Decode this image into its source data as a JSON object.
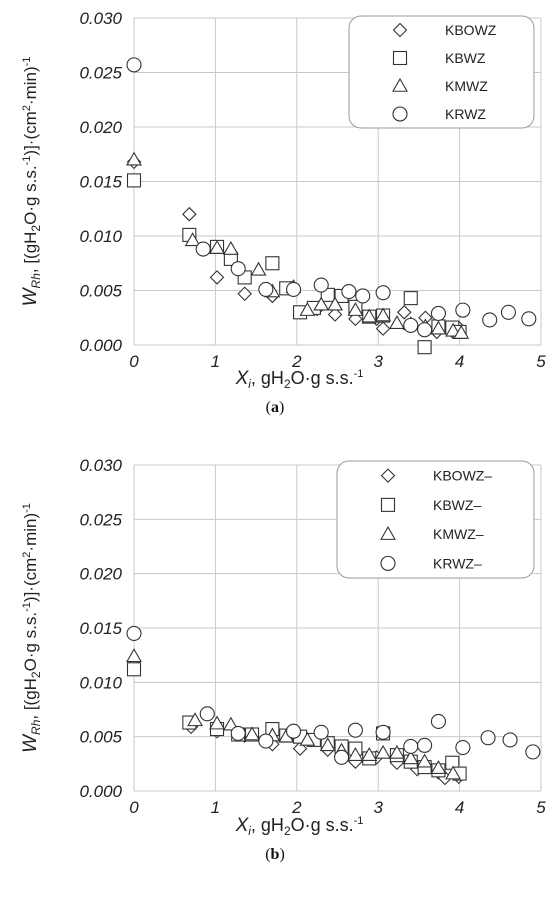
{
  "chart_data": [
    {
      "type": "scatter",
      "panel_label": "(a)",
      "panel_letter": "a",
      "xlabel": "Xi, gH2O·g s.s.-1",
      "ylabel": "WRh, [(gH2O·g s.s.-1)]·(cm2·min)-1",
      "xlim": [
        0,
        5
      ],
      "ylim": [
        0,
        0.03
      ],
      "x_ticks": [
        "0",
        "1",
        "2",
        "3",
        "4",
        "5"
      ],
      "y_ticks": [
        "0.000",
        "0.005",
        "0.010",
        "0.015",
        "0.020",
        "0.025",
        "0.030"
      ],
      "grid": true,
      "legend_position": "top-right",
      "series": [
        {
          "name": "KBOWZ",
          "marker": "diamond",
          "points": [
            [
              0,
              0.0168
            ],
            [
              0.68,
              0.012
            ],
            [
              1.02,
              0.0062
            ],
            [
              1.36,
              0.0047
            ],
            [
              1.7,
              0.0045
            ],
            [
              2.04,
              0.003
            ],
            [
              2.25,
              0.0033
            ],
            [
              2.47,
              0.0028
            ],
            [
              2.72,
              0.0024
            ],
            [
              2.98,
              0.0024
            ],
            [
              3.06,
              0.0015
            ],
            [
              3.32,
              0.003
            ],
            [
              3.58,
              0.0025
            ],
            [
              3.72,
              0.0012
            ],
            [
              3.92,
              0.0012
            ],
            [
              4.0,
              0.0015
            ]
          ]
        },
        {
          "name": "KBWZ",
          "marker": "square",
          "points": [
            [
              0,
              0.0151
            ],
            [
              0.68,
              0.0101
            ],
            [
              1.02,
              0.009
            ],
            [
              1.19,
              0.0079
            ],
            [
              1.36,
              0.0062
            ],
            [
              1.7,
              0.0075
            ],
            [
              1.87,
              0.0052
            ],
            [
              2.04,
              0.003
            ],
            [
              2.21,
              0.0034
            ],
            [
              2.38,
              0.0046
            ],
            [
              2.55,
              0.0045
            ],
            [
              2.72,
              0.0035
            ],
            [
              2.89,
              0.0026
            ],
            [
              3.06,
              0.0027
            ],
            [
              3.4,
              0.0043
            ],
            [
              3.57,
              -0.0002
            ],
            [
              3.74,
              0.0017
            ],
            [
              3.91,
              0.0016
            ],
            [
              4.0,
              0.0012
            ]
          ]
        },
        {
          "name": "KMWZ",
          "marker": "triangle",
          "points": [
            [
              0,
              0.017
            ],
            [
              0.72,
              0.0096
            ],
            [
              1.02,
              0.0089
            ],
            [
              1.19,
              0.0088
            ],
            [
              1.53,
              0.0069
            ],
            [
              1.7,
              0.0049
            ],
            [
              1.96,
              0.0053
            ],
            [
              2.13,
              0.0032
            ],
            [
              2.3,
              0.0037
            ],
            [
              2.47,
              0.0037
            ],
            [
              2.72,
              0.0032
            ],
            [
              2.89,
              0.0026
            ],
            [
              3.06,
              0.0027
            ],
            [
              3.23,
              0.002
            ],
            [
              3.4,
              0.0019
            ],
            [
              3.58,
              0.0017
            ],
            [
              3.74,
              0.0015
            ],
            [
              3.92,
              0.0013
            ],
            [
              4.02,
              0.0011
            ]
          ]
        },
        {
          "name": "KRWZ",
          "marker": "circle",
          "points": [
            [
              0,
              0.0257
            ],
            [
              0.85,
              0.0088
            ],
            [
              1.28,
              0.007
            ],
            [
              1.62,
              0.0051
            ],
            [
              1.96,
              0.0051
            ],
            [
              2.3,
              0.0055
            ],
            [
              2.64,
              0.0049
            ],
            [
              2.81,
              0.0045
            ],
            [
              3.06,
              0.0048
            ],
            [
              3.4,
              0.0018
            ],
            [
              3.57,
              0.0014
            ],
            [
              3.74,
              0.0029
            ],
            [
              4.04,
              0.0032
            ],
            [
              4.37,
              0.0023
            ],
            [
              4.6,
              0.003
            ],
            [
              4.85,
              0.0024
            ]
          ]
        }
      ]
    },
    {
      "type": "scatter",
      "panel_label": "(b)",
      "panel_letter": "b",
      "xlabel": "Xi, gH2O·g s.s.-1",
      "ylabel": "WRh, [(gH2O·g s.s.-1)]·(cm2·min)-1",
      "xlim": [
        0,
        5
      ],
      "ylim": [
        0,
        0.03
      ],
      "x_ticks": [
        "0",
        "1",
        "2",
        "3",
        "4",
        "5"
      ],
      "y_ticks": [
        "0.000",
        "0.005",
        "0.010",
        "0.015",
        "0.020",
        "0.025",
        "0.030"
      ],
      "grid": true,
      "legend_position": "top-right",
      "series": [
        {
          "name": "KBOWZ–",
          "marker": "diamond",
          "points": [
            [
              0,
              0.0116
            ],
            [
              0.7,
              0.0059
            ],
            [
              1.02,
              0.0055
            ],
            [
              1.36,
              0.0051
            ],
            [
              1.7,
              0.0043
            ],
            [
              2.04,
              0.0039
            ],
            [
              2.38,
              0.0038
            ],
            [
              2.55,
              0.0034
            ],
            [
              2.72,
              0.0027
            ],
            [
              2.98,
              0.0031
            ],
            [
              3.23,
              0.0026
            ],
            [
              3.48,
              0.002
            ],
            [
              3.74,
              0.0017
            ],
            [
              3.82,
              0.0012
            ],
            [
              3.99,
              0.0013
            ]
          ]
        },
        {
          "name": "KBWZ–",
          "marker": "square",
          "points": [
            [
              0,
              0.0112
            ],
            [
              0.68,
              0.0063
            ],
            [
              1.02,
              0.0057
            ],
            [
              1.28,
              0.0052
            ],
            [
              1.45,
              0.0052
            ],
            [
              1.7,
              0.0057
            ],
            [
              1.87,
              0.0051
            ],
            [
              2.04,
              0.005
            ],
            [
              2.21,
              0.0047
            ],
            [
              2.38,
              0.0044
            ],
            [
              2.55,
              0.0041
            ],
            [
              2.72,
              0.0039
            ],
            [
              2.89,
              0.003
            ],
            [
              3.06,
              0.0053
            ],
            [
              3.23,
              0.0033
            ],
            [
              3.4,
              0.0027
            ],
            [
              3.57,
              0.0022
            ],
            [
              3.74,
              0.0019
            ],
            [
              3.91,
              0.0026
            ],
            [
              4.0,
              0.0016
            ]
          ]
        },
        {
          "name": "KMWZ–",
          "marker": "triangle",
          "points": [
            [
              0,
              0.0124
            ],
            [
              0.75,
              0.0065
            ],
            [
              1.02,
              0.0062
            ],
            [
              1.19,
              0.0061
            ],
            [
              1.45,
              0.0052
            ],
            [
              1.7,
              0.0051
            ],
            [
              1.87,
              0.005
            ],
            [
              2.13,
              0.0047
            ],
            [
              2.38,
              0.0042
            ],
            [
              2.55,
              0.0037
            ],
            [
              2.72,
              0.0033
            ],
            [
              2.89,
              0.0033
            ],
            [
              3.06,
              0.0035
            ],
            [
              3.23,
              0.0035
            ],
            [
              3.4,
              0.003
            ],
            [
              3.57,
              0.0027
            ],
            [
              3.74,
              0.0021
            ],
            [
              3.92,
              0.0016
            ]
          ]
        },
        {
          "name": "KRWZ–",
          "marker": "circle",
          "points": [
            [
              0,
              0.0145
            ],
            [
              0.9,
              0.0071
            ],
            [
              1.28,
              0.0053
            ],
            [
              1.62,
              0.0046
            ],
            [
              1.96,
              0.0055
            ],
            [
              2.3,
              0.0054
            ],
            [
              2.55,
              0.0031
            ],
            [
              2.72,
              0.0056
            ],
            [
              3.06,
              0.0054
            ],
            [
              3.4,
              0.0041
            ],
            [
              3.57,
              0.0042
            ],
            [
              3.74,
              0.0064
            ],
            [
              4.04,
              0.004
            ],
            [
              4.35,
              0.0049
            ],
            [
              4.62,
              0.0047
            ],
            [
              4.9,
              0.0036
            ]
          ]
        }
      ]
    }
  ]
}
